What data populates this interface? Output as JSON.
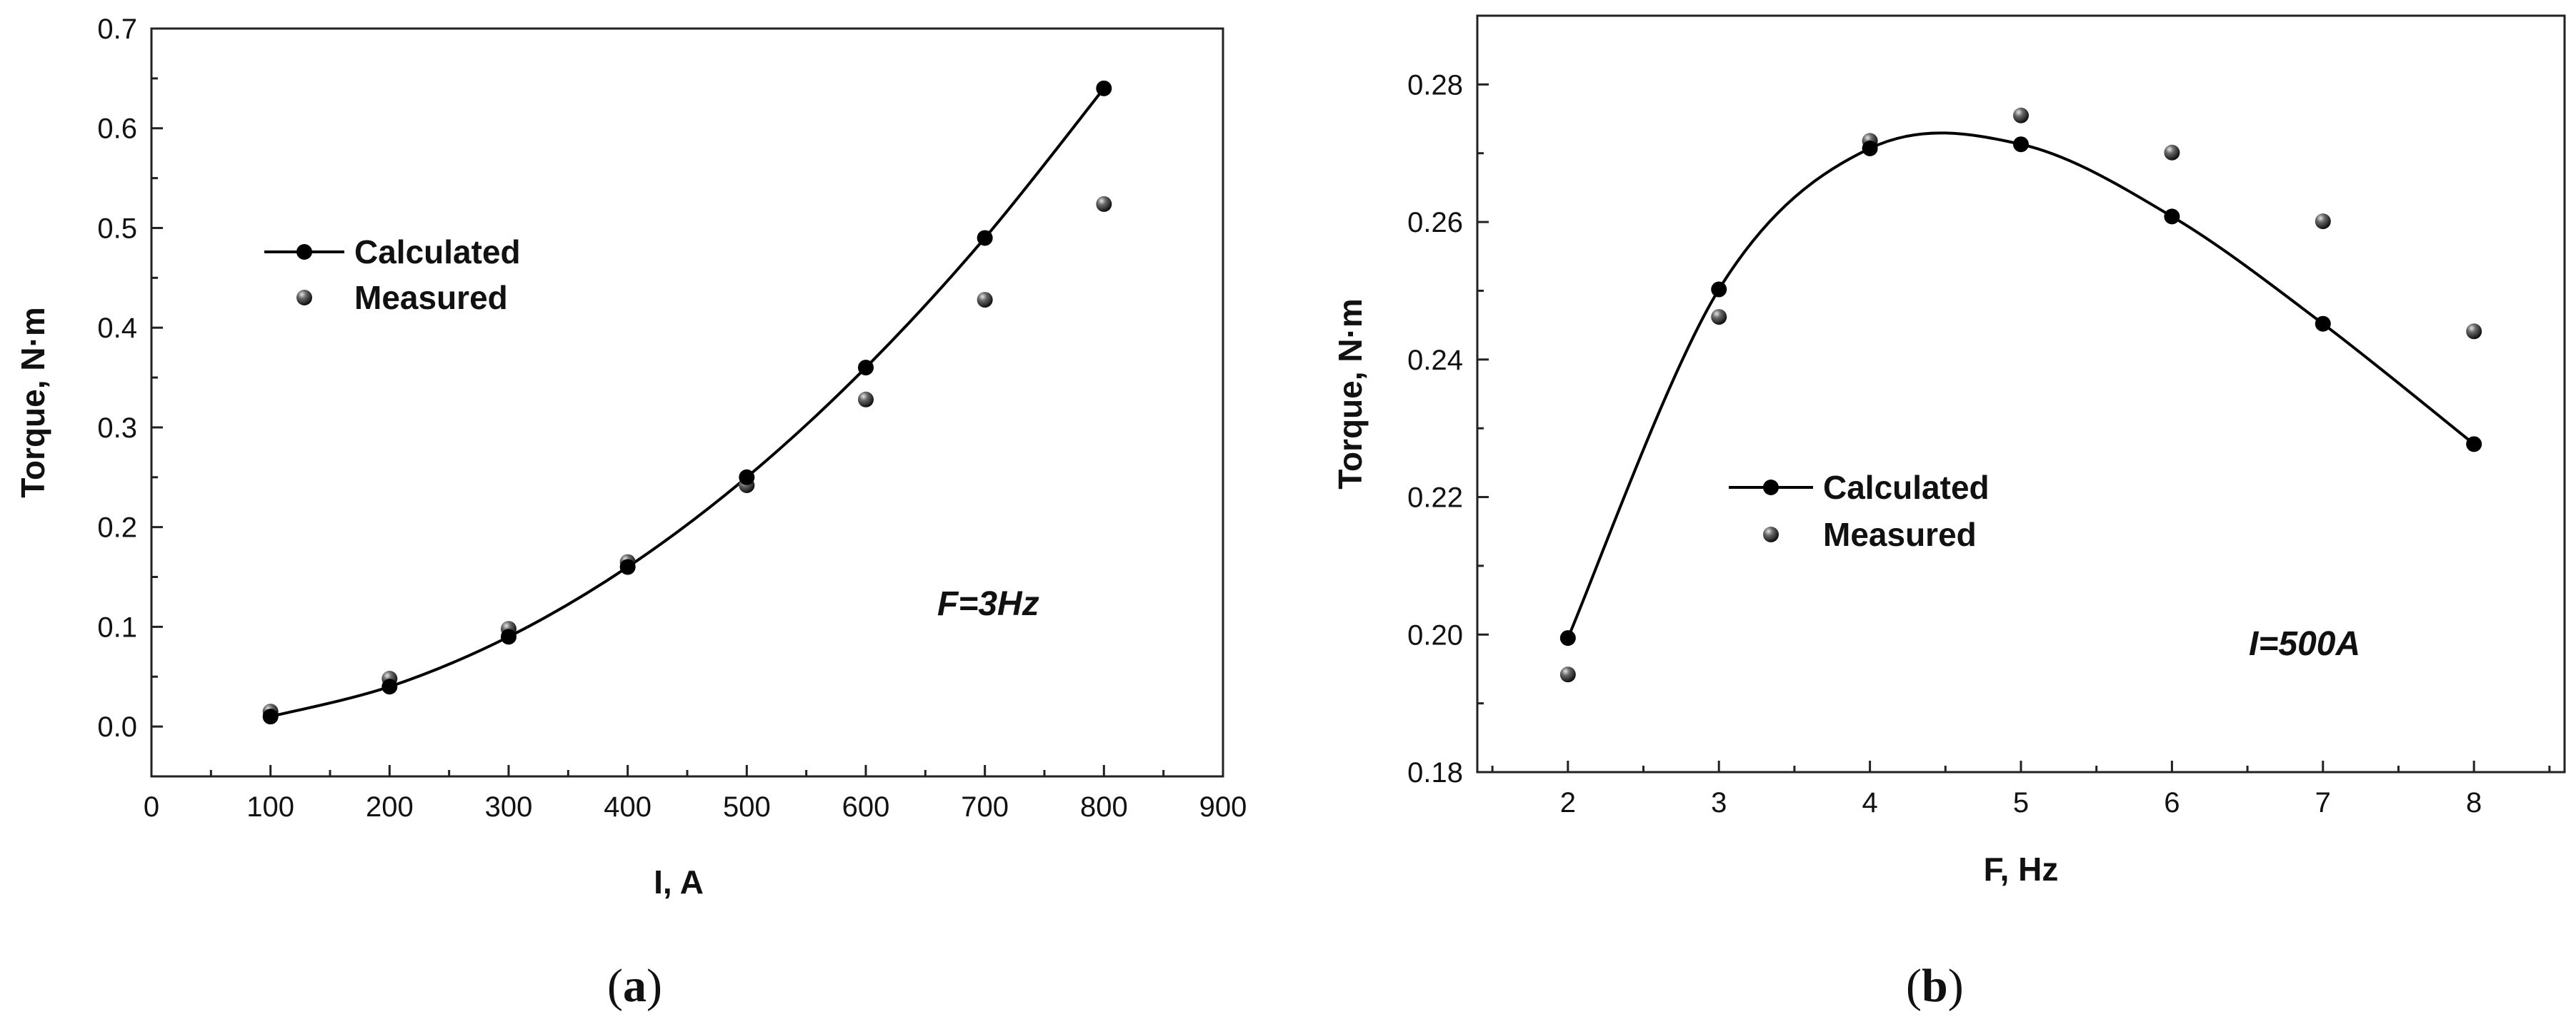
{
  "chart_data": [
    {
      "type": "line",
      "panel_label": {
        "open": "(",
        "letter": "a",
        "close": ")"
      },
      "xlabel": "I, A",
      "ylabel": "Torque, N·m",
      "xlim": [
        0,
        900
      ],
      "ylim": [
        -0.05,
        0.7
      ],
      "xticks": [
        0,
        100,
        200,
        300,
        400,
        500,
        600,
        700,
        800,
        900
      ],
      "yticks": [
        0.0,
        0.1,
        0.2,
        0.3,
        0.4,
        0.5,
        0.6,
        0.7
      ],
      "ytick_labels": [
        "0.0",
        "0.1",
        "0.2",
        "0.3",
        "0.4",
        "0.5",
        "0.6",
        "0.7"
      ],
      "grid": false,
      "legend_position": "upper-left",
      "annotation": "F=3Hz",
      "series": [
        {
          "name": "Calculated",
          "style": "line-with-markers",
          "x": [
            100,
            200,
            300,
            400,
            500,
            600,
            700,
            800
          ],
          "y": [
            0.01,
            0.04,
            0.09,
            0.16,
            0.25,
            0.36,
            0.49,
            0.64
          ]
        },
        {
          "name": "Measured",
          "style": "markers",
          "x": [
            100,
            200,
            300,
            400,
            500,
            600,
            700,
            800
          ],
          "y": [
            0.015,
            0.048,
            0.098,
            0.165,
            0.242,
            0.328,
            0.428,
            0.524
          ]
        }
      ]
    },
    {
      "type": "line",
      "panel_label": {
        "open": "(",
        "letter": "b",
        "close": ")"
      },
      "xlabel": "F, Hz",
      "ylabel": "Torque, N·m",
      "xlim": [
        1.4,
        8.6
      ],
      "ylim": [
        0.18,
        0.29
      ],
      "xticks": [
        2,
        3,
        4,
        5,
        6,
        7,
        8
      ],
      "yticks": [
        0.18,
        0.2,
        0.22,
        0.24,
        0.26,
        0.28
      ],
      "ytick_labels": [
        "0.18",
        "0.20",
        "0.22",
        "0.24",
        "0.26",
        "0.28"
      ],
      "grid": false,
      "legend_position": "center-left",
      "annotation": "I=500A",
      "series": [
        {
          "name": "Calculated",
          "style": "smooth-line-with-markers",
          "x": [
            2,
            3,
            4,
            5,
            6,
            7,
            8
          ],
          "y": [
            0.1995,
            0.2502,
            0.2707,
            0.2713,
            0.2608,
            0.2452,
            0.2277
          ]
        },
        {
          "name": "Measured",
          "style": "markers",
          "x": [
            2,
            3,
            4,
            5,
            6,
            7,
            8
          ],
          "y": [
            0.1942,
            0.2462,
            0.2718,
            0.2755,
            0.2701,
            0.2601,
            0.2441
          ]
        }
      ]
    }
  ]
}
